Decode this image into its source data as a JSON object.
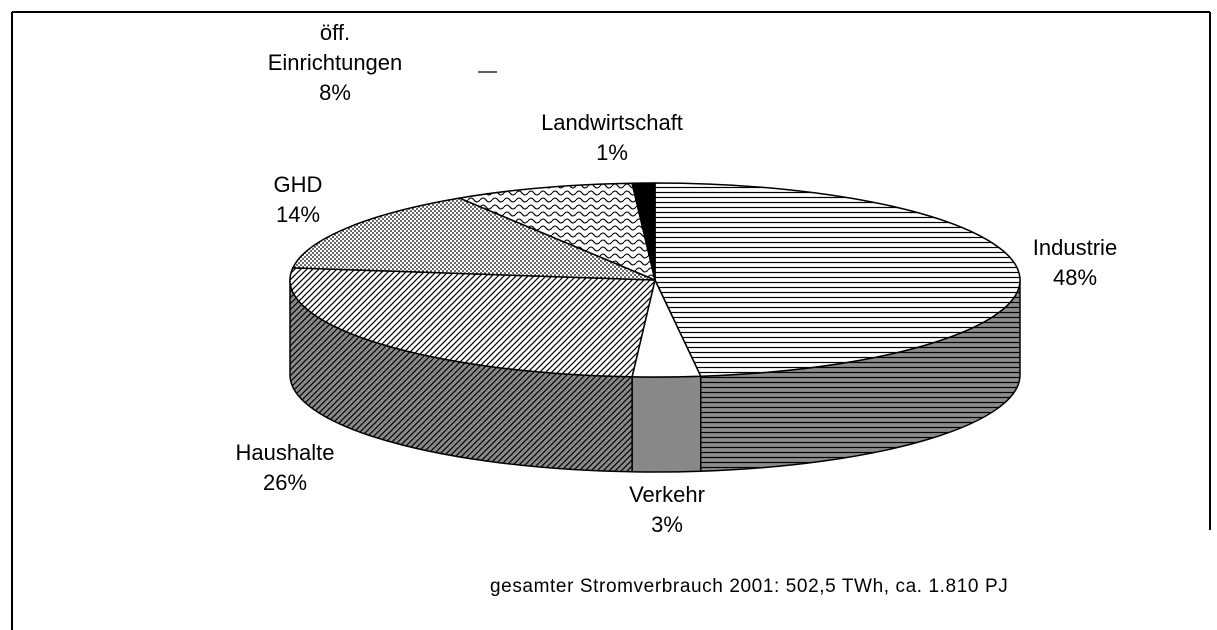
{
  "chart_data": {
    "type": "pie",
    "categories": [
      "Industrie",
      "Verkehr",
      "Haushalte",
      "GHD",
      "öff. Einrichtungen",
      "Landwirtschaft"
    ],
    "values": [
      48,
      3,
      26,
      14,
      8,
      1
    ],
    "value_labels": [
      "48%",
      "3%",
      "26%",
      "14%",
      "8%",
      "1%"
    ],
    "colors": [
      "#ffffff",
      "#ffffff",
      "#ffffff",
      "#ffffff",
      "#ffffff",
      "#000000"
    ],
    "side_colors": [
      "#8c8c8c",
      "#888888",
      "#8a8a8a",
      "#bbbbbb",
      "#bbbbbb",
      "#000000"
    ],
    "footnote": "gesamter Stromverbrauch 2001: 502,5 TWh, ca. 1.810 PJ"
  }
}
